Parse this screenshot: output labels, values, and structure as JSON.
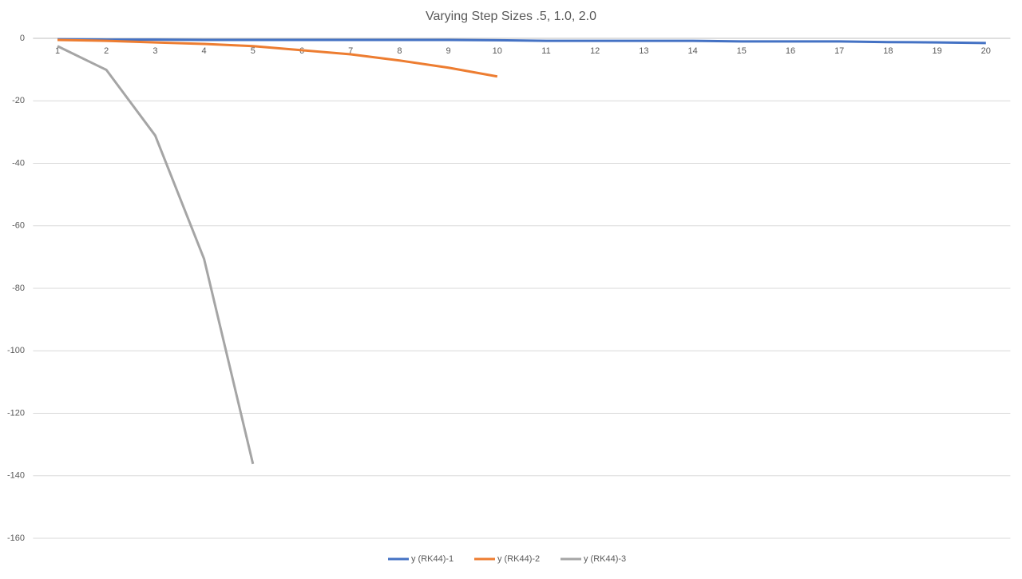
{
  "chart_data": {
    "type": "line",
    "title": "Varying Step Sizes .5, 1.0, 2.0",
    "categories": [
      "1",
      "2",
      "3",
      "4",
      "5",
      "6",
      "7",
      "8",
      "9",
      "10",
      "11",
      "12",
      "13",
      "14",
      "15",
      "16",
      "17",
      "18",
      "19",
      "20"
    ],
    "series": [
      {
        "name": "y (RK44)-1",
        "color": "#4472c4",
        "values": [
          -0.3,
          -0.4,
          -0.4,
          -0.5,
          -0.5,
          -0.5,
          -0.5,
          -0.5,
          -0.5,
          -0.6,
          -0.8,
          -0.8,
          -0.8,
          -0.8,
          -1.0,
          -1.0,
          -1.0,
          -1.2,
          -1.3,
          -1.5
        ]
      },
      {
        "name": "y (RK44)-2",
        "color": "#ed7d31",
        "values": [
          -0.5,
          -0.8,
          -1.3,
          -1.8,
          -2.5,
          -3.8,
          -5.1,
          -7.1,
          -9.4,
          -12.2,
          null,
          null,
          null,
          null,
          null,
          null,
          null,
          null,
          null,
          null
        ]
      },
      {
        "name": "y (RK44)-3",
        "color": "#a5a5a5",
        "values": [
          -2.5,
          -10.1,
          -31.1,
          -70.6,
          -136.2,
          null,
          null,
          null,
          null,
          null,
          null,
          null,
          null,
          null,
          null,
          null,
          null,
          null,
          null,
          null
        ]
      }
    ],
    "ylim": [
      -160,
      0
    ],
    "yticks": [
      0,
      -20,
      -40,
      -60,
      -80,
      -100,
      -120,
      -140,
      -160
    ],
    "grid": true,
    "legend": "bottom"
  }
}
